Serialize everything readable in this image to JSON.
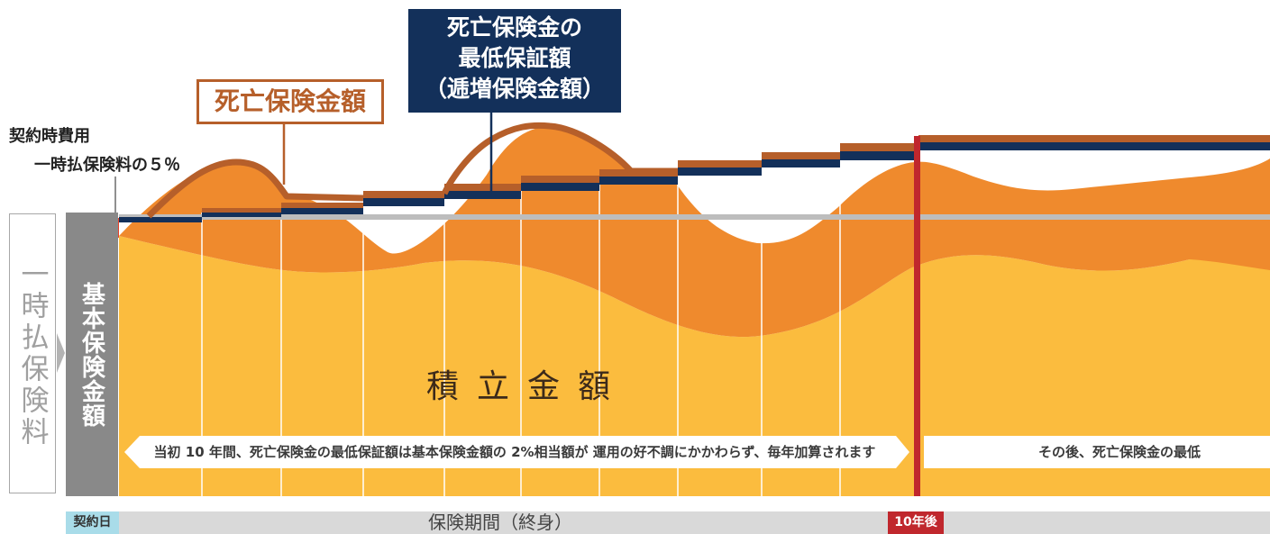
{
  "fee": {
    "title": "契約時費用",
    "detail": "一時払保険料の５％"
  },
  "callouts": {
    "death_benefit": "死亡保険金額",
    "minimum_guarantee": [
      "死亡保険金の",
      "最低保証額",
      "（逓増保険金額）"
    ]
  },
  "columns": {
    "single_premium": "一時払保険料",
    "basic_amount": "基本保険金額"
  },
  "accumulation_label": "積立金額",
  "ribbons": {
    "first_ten_years": "当初 10 年間、死亡保険金の最低保証額は基本保険金額の 2%相当額が 運用の好不調にかかわらず、毎年加算されます",
    "after": "その後、死亡保険金の最低"
  },
  "timeline": {
    "start": "契約日",
    "period": "保険期間（終身）",
    "marker": "10年後"
  },
  "colors": {
    "accumulation": "#fbbc3e",
    "death_benefit_area": "#ef8a2d",
    "death_benefit_line": "#b65f2a",
    "guarantee_line": "#13305a",
    "basic_line": "#bdbdbd",
    "ten_year_marker": "#c0272d",
    "fee": "#e8432b"
  }
}
